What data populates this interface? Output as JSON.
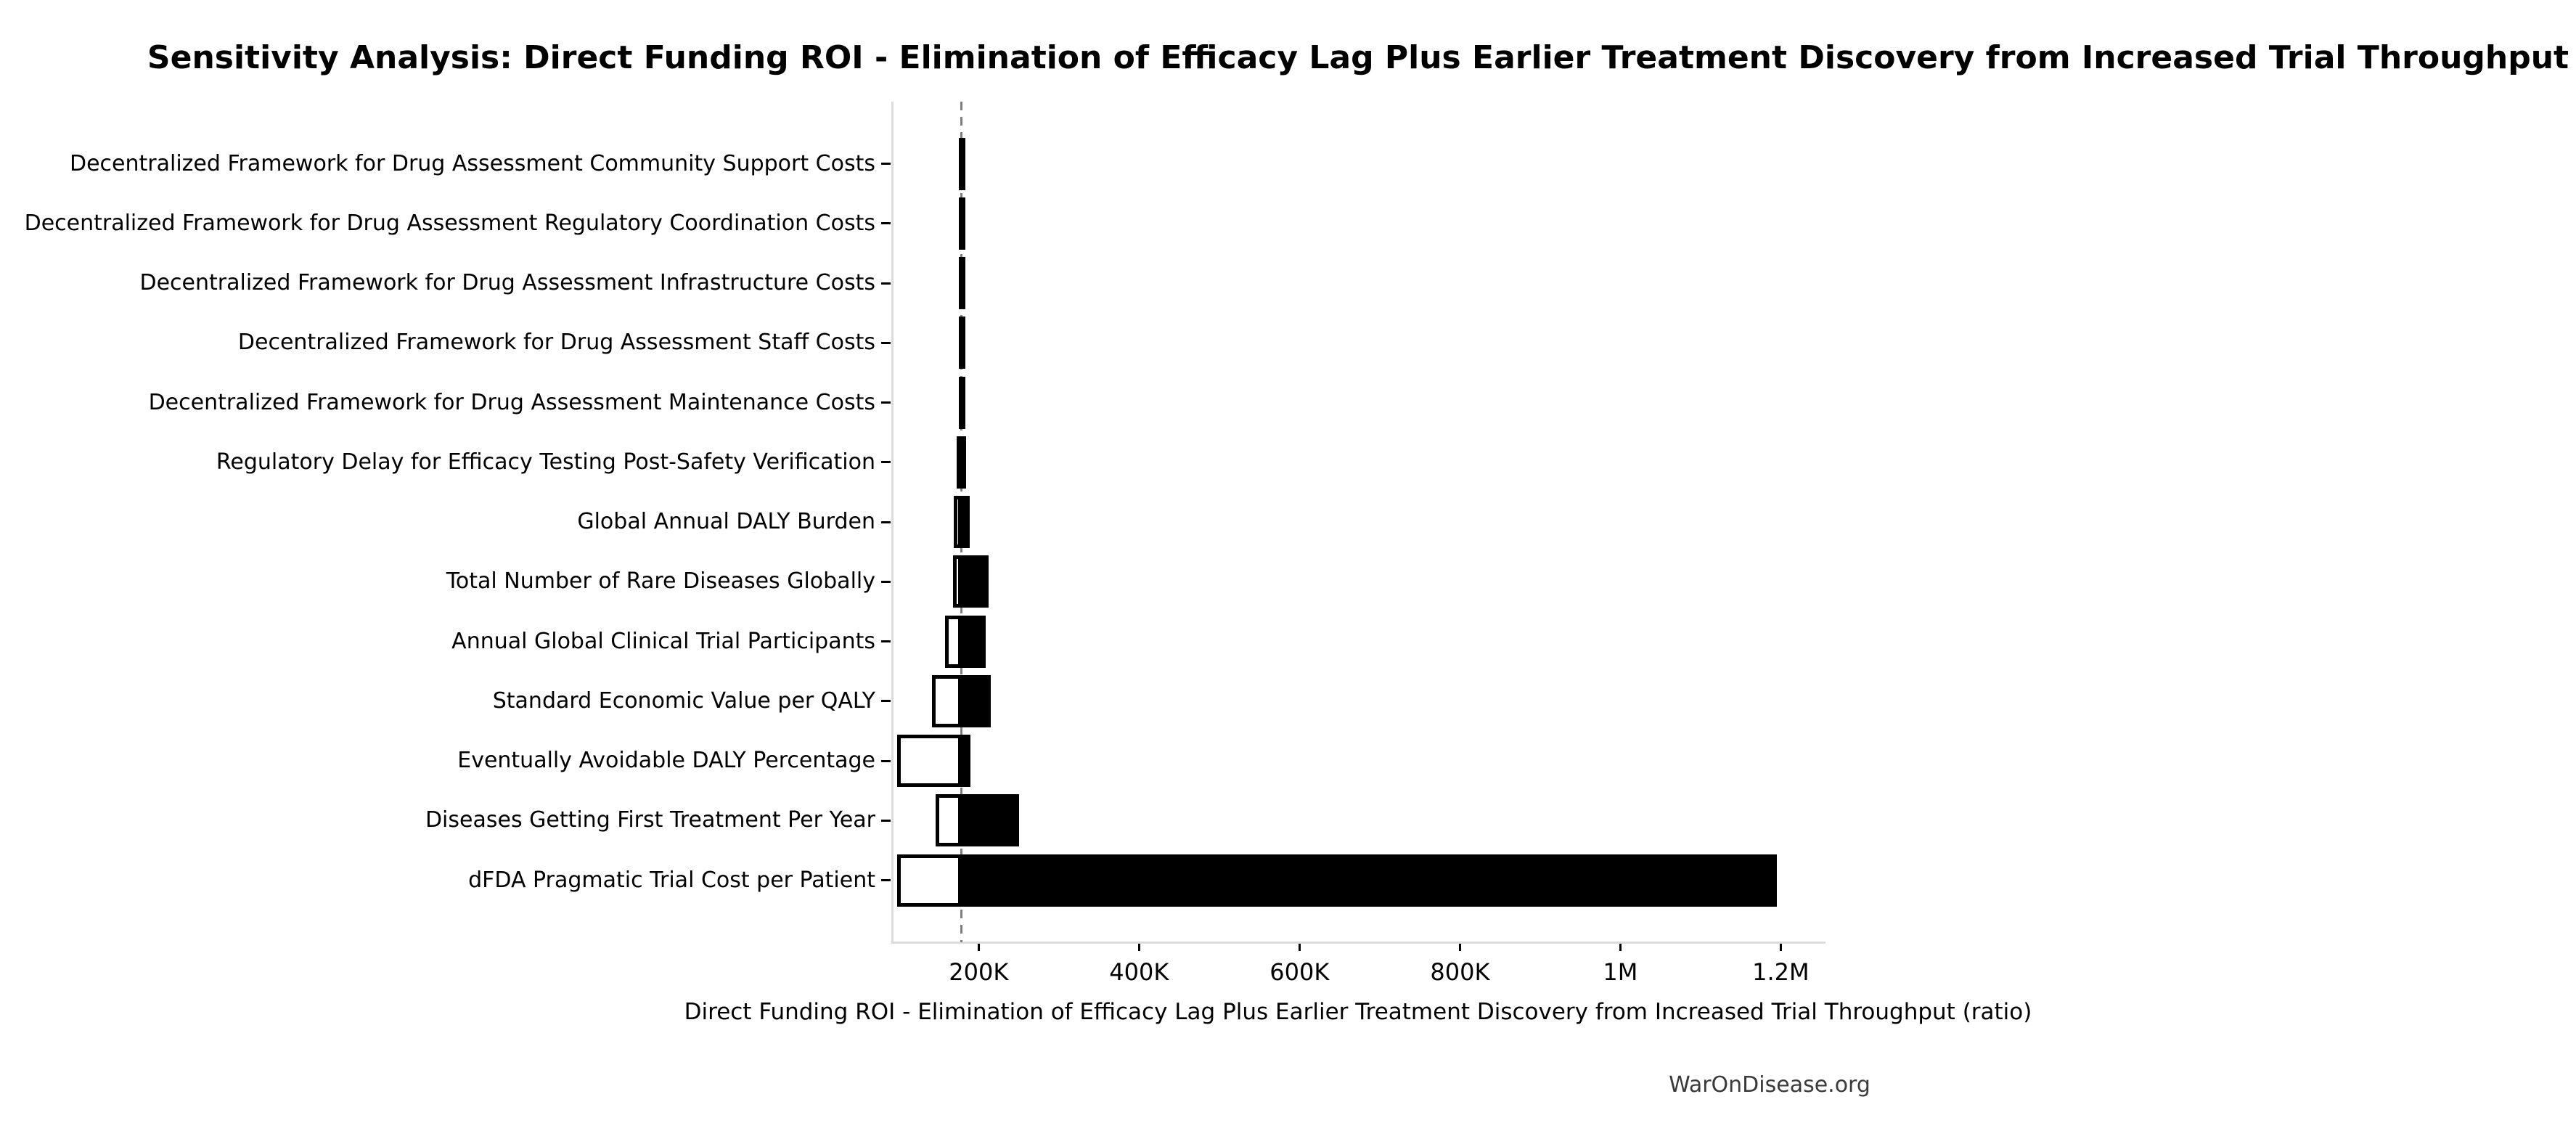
{
  "page": {
    "background": "#ffffff",
    "watermark": "WarOnDisease.org"
  },
  "chart_data": {
    "type": "bar",
    "variant": "tornado-sensitivity",
    "orientation": "horizontal",
    "title": "Sensitivity Analysis: Direct Funding ROI - Elimination of Efficacy Lag Plus Earlier Treatment Discovery from Increased Trial Throughput",
    "xlabel": "Direct Funding ROI - Elimination of Efficacy Lag Plus Earlier Treatment Discovery from Increased Trial Throughput (ratio)",
    "ylabel": "",
    "grid": false,
    "legend": null,
    "baseline_value": 179000,
    "xlim": [
      93000,
      1253000
    ],
    "x_ticks": [
      {
        "value": 200000,
        "label": "200K"
      },
      {
        "value": 400000,
        "label": "400K"
      },
      {
        "value": 600000,
        "label": "600K"
      },
      {
        "value": 800000,
        "label": "800K"
      },
      {
        "value": 1000000,
        "label": "1M"
      },
      {
        "value": 1200000,
        "label": "1.2M"
      }
    ],
    "colors": {
      "low_bar_fill": "#ffffff",
      "high_bar_fill": "#000000",
      "bar_edge": "#000000",
      "baseline_line": "#7f7f7f",
      "spine": "#dcdcdc"
    },
    "categories": [
      {
        "label": "Decentralized Framework for Drug Assessment Community Support Costs",
        "low": 178000,
        "high": 181000
      },
      {
        "label": "Decentralized Framework for Drug Assessment Regulatory Coordination Costs",
        "low": 178000,
        "high": 181000
      },
      {
        "label": "Decentralized Framework for Drug Assessment Infrastructure Costs",
        "low": 178000,
        "high": 181000
      },
      {
        "label": "Decentralized Framework for Drug Assessment Staff Costs",
        "low": 178000,
        "high": 181000
      },
      {
        "label": "Decentralized Framework for Drug Assessment Maintenance Costs",
        "low": 178000,
        "high": 181000
      },
      {
        "label": "Regulatory Delay for Efficacy Testing Post-Safety Verification",
        "low": 175000,
        "high": 182000
      },
      {
        "label": "Global Annual DALY Burden",
        "low": 169000,
        "high": 189000
      },
      {
        "label": "Total Number of Rare Diseases Globally",
        "low": 168000,
        "high": 212000
      },
      {
        "label": "Annual Global Clinical Trial Participants",
        "low": 158000,
        "high": 209000
      },
      {
        "label": "Standard Economic Value per QALY",
        "low": 142000,
        "high": 215000
      },
      {
        "label": "Eventually Avoidable DALY Percentage",
        "low": 98000,
        "high": 190000
      },
      {
        "label": "Diseases Getting First Treatment Per Year",
        "low": 146000,
        "high": 250000
      },
      {
        "label": "dFDA Pragmatic Trial Cost per Patient",
        "low": 98000,
        "high": 1195000
      }
    ]
  }
}
